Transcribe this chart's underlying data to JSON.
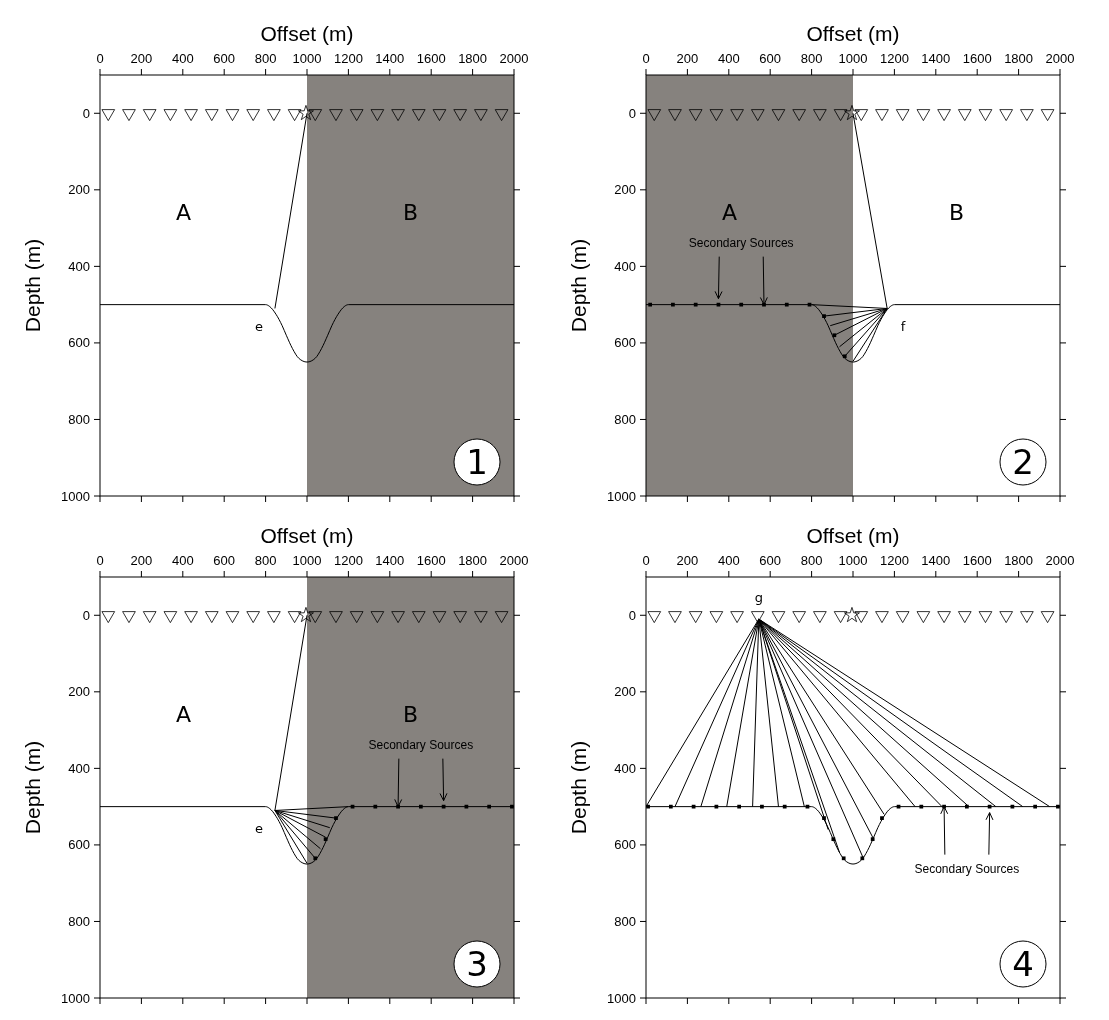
{
  "chart_data": [
    {
      "type": "line",
      "xlabel": "Offset (m)",
      "ylabel": "Depth (m)",
      "xlim": [
        0,
        2000
      ],
      "xticks": [
        0,
        200,
        400,
        600,
        800,
        1000,
        1200,
        1400,
        1600,
        1800,
        2000
      ],
      "ylim": [
        1000,
        -100
      ],
      "yticks": [
        0,
        200,
        400,
        600,
        800,
        1000
      ],
      "bands": [
        {
          "axis": "x",
          "from": 1000,
          "to": 2000,
          "color": "#86827e"
        }
      ],
      "series": [
        {
          "color": "#000000",
          "x": [
            0,
            800,
            820,
            850,
            880,
            900,
            930,
            960,
            1000,
            1040,
            1070,
            1100,
            1120,
            1150,
            1180,
            1200,
            2000
          ],
          "values": [
            500,
            500,
            505,
            525,
            555,
            580,
            615,
            640,
            650,
            640,
            615,
            580,
            555,
            525,
            505,
            500,
            500
          ]
        },
        {
          "color": "#000000",
          "x": [
            1000,
            845
          ],
          "values": [
            0,
            510
          ]
        },
        {
          "type": "scatter",
          "marker": "triangle",
          "color": "#000000",
          "x": [
            40,
            140,
            240,
            340,
            440,
            540,
            640,
            740,
            840,
            940,
            1040,
            1140,
            1240,
            1340,
            1440,
            1540,
            1640,
            1740,
            1840,
            1940
          ],
          "values": [
            0,
            0,
            0,
            0,
            0,
            0,
            0,
            0,
            0,
            0,
            0,
            0,
            0,
            0,
            0,
            0,
            0,
            0,
            0,
            0
          ]
        },
        {
          "type": "scatter",
          "marker": "star",
          "color": "#000000",
          "x": [
            995
          ],
          "values": [
            0
          ]
        }
      ],
      "annotations": [
        "A",
        "B",
        "e",
        "1"
      ]
    },
    {
      "type": "line",
      "xlabel": "Offset (m)",
      "ylabel": "Depth (m)",
      "xlim": [
        0,
        2000
      ],
      "xticks": [
        0,
        200,
        400,
        600,
        800,
        1000,
        1200,
        1400,
        1600,
        1800,
        2000
      ],
      "ylim": [
        1000,
        -100
      ],
      "yticks": [
        0,
        200,
        400,
        600,
        800,
        1000
      ],
      "bands": [
        {
          "axis": "x",
          "from": 0,
          "to": 1000,
          "color": "#86827e"
        }
      ],
      "series": [
        {
          "color": "#000000",
          "x": [
            0,
            800,
            820,
            850,
            880,
            900,
            930,
            960,
            1000,
            1040,
            1070,
            1100,
            1120,
            1150,
            1180,
            1200,
            2000
          ],
          "values": [
            500,
            500,
            505,
            525,
            555,
            580,
            615,
            640,
            650,
            640,
            615,
            580,
            555,
            525,
            505,
            500,
            500
          ]
        },
        {
          "color": "#000000",
          "x": [
            1000,
            1165
          ],
          "values": [
            0,
            510
          ]
        },
        {
          "color": "#000000",
          "x": [
            800,
            1165
          ],
          "values": [
            500,
            510
          ]
        },
        {
          "color": "#000000",
          "x": [
            860,
            1165
          ],
          "values": [
            530,
            510
          ]
        },
        {
          "color": "#000000",
          "x": [
            890,
            1165
          ],
          "values": [
            555,
            510
          ]
        },
        {
          "color": "#000000",
          "x": [
            910,
            1165
          ],
          "values": [
            580,
            510
          ]
        },
        {
          "color": "#000000",
          "x": [
            935,
            1165
          ],
          "values": [
            610,
            510
          ]
        },
        {
          "color": "#000000",
          "x": [
            960,
            1165
          ],
          "values": [
            635,
            510
          ]
        },
        {
          "color": "#000000",
          "x": [
            1000,
            1165
          ],
          "values": [
            648,
            510
          ]
        },
        {
          "type": "scatter",
          "marker": "triangle",
          "color": "#000000",
          "x": [
            40,
            140,
            240,
            340,
            440,
            540,
            640,
            740,
            840,
            940,
            1040,
            1140,
            1240,
            1340,
            1440,
            1540,
            1640,
            1740,
            1840,
            1940
          ],
          "values": [
            0,
            0,
            0,
            0,
            0,
            0,
            0,
            0,
            0,
            0,
            0,
            0,
            0,
            0,
            0,
            0,
            0,
            0,
            0,
            0
          ]
        },
        {
          "type": "scatter",
          "marker": "star",
          "color": "#000000",
          "x": [
            995
          ],
          "values": [
            0
          ]
        },
        {
          "type": "scatter",
          "marker": "square",
          "color": "#000000",
          "name": "Secondary Sources",
          "x": [
            860,
            910,
            960,
            790,
            680,
            570,
            460,
            350,
            240,
            130,
            20
          ],
          "values": [
            530,
            580,
            635,
            500,
            500,
            500,
            500,
            500,
            500,
            500,
            500
          ]
        }
      ],
      "annotations": [
        "A",
        "B",
        "f",
        "2"
      ]
    },
    {
      "type": "line",
      "xlabel": "Offset (m)",
      "ylabel": "Depth (m)",
      "xlim": [
        0,
        2000
      ],
      "xticks": [
        0,
        200,
        400,
        600,
        800,
        1000,
        1200,
        1400,
        1600,
        1800,
        2000
      ],
      "ylim": [
        1000,
        -100
      ],
      "yticks": [
        0,
        200,
        400,
        600,
        800,
        1000
      ],
      "bands": [
        {
          "axis": "x",
          "from": 1000,
          "to": 2000,
          "color": "#86827e"
        }
      ],
      "series": [
        {
          "color": "#000000",
          "x": [
            0,
            800,
            820,
            850,
            880,
            900,
            930,
            960,
            1000,
            1040,
            1070,
            1100,
            1120,
            1150,
            1180,
            1200,
            2000
          ],
          "values": [
            500,
            500,
            505,
            525,
            555,
            580,
            615,
            640,
            650,
            640,
            615,
            580,
            555,
            525,
            505,
            500,
            500
          ]
        },
        {
          "color": "#000000",
          "x": [
            1000,
            845
          ],
          "values": [
            0,
            510
          ]
        },
        {
          "color": "#000000",
          "x": [
            1200,
            845
          ],
          "values": [
            500,
            510
          ]
        },
        {
          "color": "#000000",
          "x": [
            1140,
            845
          ],
          "values": [
            530,
            510
          ]
        },
        {
          "color": "#000000",
          "x": [
            1110,
            845
          ],
          "values": [
            555,
            510
          ]
        },
        {
          "color": "#000000",
          "x": [
            1090,
            845
          ],
          "values": [
            580,
            510
          ]
        },
        {
          "color": "#000000",
          "x": [
            1065,
            845
          ],
          "values": [
            610,
            510
          ]
        },
        {
          "color": "#000000",
          "x": [
            1040,
            845
          ],
          "values": [
            635,
            510
          ]
        },
        {
          "color": "#000000",
          "x": [
            1000,
            845
          ],
          "values": [
            648,
            510
          ]
        },
        {
          "type": "scatter",
          "marker": "triangle",
          "color": "#000000",
          "x": [
            40,
            140,
            240,
            340,
            440,
            540,
            640,
            740,
            840,
            940,
            1040,
            1140,
            1240,
            1340,
            1440,
            1540,
            1640,
            1740,
            1840,
            1940
          ],
          "values": [
            0,
            0,
            0,
            0,
            0,
            0,
            0,
            0,
            0,
            0,
            0,
            0,
            0,
            0,
            0,
            0,
            0,
            0,
            0,
            0
          ]
        },
        {
          "type": "scatter",
          "marker": "star",
          "color": "#000000",
          "x": [
            995
          ],
          "values": [
            0
          ]
        },
        {
          "type": "scatter",
          "marker": "square",
          "color": "#000000",
          "name": "Secondary Sources",
          "x": [
            1040,
            1090,
            1140,
            1220,
            1330,
            1440,
            1550,
            1660,
            1770,
            1880,
            1990
          ],
          "values": [
            635,
            585,
            530,
            500,
            500,
            500,
            500,
            500,
            500,
            500,
            500
          ]
        }
      ],
      "annotations": [
        "A",
        "B",
        "e",
        "3"
      ]
    },
    {
      "type": "line",
      "xlabel": "Offset (m)",
      "ylabel": "Depth (m)",
      "xlim": [
        0,
        2000
      ],
      "xticks": [
        0,
        200,
        400,
        600,
        800,
        1000,
        1200,
        1400,
        1600,
        1800,
        2000
      ],
      "ylim": [
        1000,
        -100
      ],
      "yticks": [
        0,
        200,
        400,
        600,
        800,
        1000
      ],
      "series": [
        {
          "color": "#000000",
          "x": [
            0,
            800,
            820,
            850,
            880,
            900,
            930,
            960,
            1000,
            1040,
            1070,
            1100,
            1120,
            1150,
            1180,
            1200,
            2000
          ],
          "values": [
            500,
            500,
            505,
            525,
            555,
            580,
            615,
            640,
            650,
            640,
            615,
            580,
            555,
            525,
            505,
            500,
            500
          ]
        },
        {
          "color": "#000000",
          "x": [
            545,
            0
          ],
          "values": [
            10,
            500
          ]
        },
        {
          "color": "#000000",
          "x": [
            545,
            140
          ],
          "values": [
            10,
            500
          ]
        },
        {
          "color": "#000000",
          "x": [
            545,
            265
          ],
          "values": [
            10,
            500
          ]
        },
        {
          "color": "#000000",
          "x": [
            545,
            390
          ],
          "values": [
            10,
            500
          ]
        },
        {
          "color": "#000000",
          "x": [
            545,
            515
          ],
          "values": [
            10,
            500
          ]
        },
        {
          "color": "#000000",
          "x": [
            545,
            640
          ],
          "values": [
            10,
            500
          ]
        },
        {
          "color": "#000000",
          "x": [
            545,
            765
          ],
          "values": [
            10,
            500
          ]
        },
        {
          "color": "#000000",
          "x": [
            545,
            880
          ],
          "values": [
            10,
            560
          ]
        },
        {
          "color": "#000000",
          "x": [
            545,
            935
          ],
          "values": [
            10,
            620
          ]
        },
        {
          "color": "#000000",
          "x": [
            545,
            1050
          ],
          "values": [
            10,
            635
          ]
        },
        {
          "color": "#000000",
          "x": [
            545,
            1100
          ],
          "values": [
            10,
            585
          ]
        },
        {
          "color": "#000000",
          "x": [
            545,
            1150
          ],
          "values": [
            10,
            520
          ]
        },
        {
          "color": "#000000",
          "x": [
            545,
            1300
          ],
          "values": [
            10,
            500
          ]
        },
        {
          "color": "#000000",
          "x": [
            545,
            1430
          ],
          "values": [
            10,
            500
          ]
        },
        {
          "color": "#000000",
          "x": [
            545,
            1560
          ],
          "values": [
            10,
            500
          ]
        },
        {
          "color": "#000000",
          "x": [
            545,
            1690
          ],
          "values": [
            10,
            500
          ]
        },
        {
          "color": "#000000",
          "x": [
            545,
            1820
          ],
          "values": [
            10,
            500
          ]
        },
        {
          "color": "#000000",
          "x": [
            545,
            1950
          ],
          "values": [
            10,
            500
          ]
        },
        {
          "type": "scatter",
          "marker": "triangle",
          "color": "#000000",
          "x": [
            40,
            140,
            240,
            340,
            440,
            540,
            640,
            740,
            840,
            940,
            1040,
            1140,
            1240,
            1340,
            1440,
            1540,
            1640,
            1740,
            1840,
            1940
          ],
          "values": [
            0,
            0,
            0,
            0,
            0,
            0,
            0,
            0,
            0,
            0,
            0,
            0,
            0,
            0,
            0,
            0,
            0,
            0,
            0,
            0
          ]
        },
        {
          "type": "scatter",
          "marker": "star",
          "color": "#000000",
          "x": [
            995
          ],
          "values": [
            0
          ]
        },
        {
          "type": "scatter",
          "marker": "square",
          "color": "#000000",
          "name": "Secondary Sources",
          "x": [
            10,
            120,
            230,
            340,
            450,
            560,
            670,
            780,
            860,
            905,
            955,
            1045,
            1095,
            1140,
            1220,
            1330,
            1440,
            1550,
            1660,
            1770,
            1880,
            1990
          ],
          "values": [
            500,
            500,
            500,
            500,
            500,
            500,
            500,
            500,
            530,
            585,
            635,
            635,
            585,
            530,
            500,
            500,
            500,
            500,
            500,
            500,
            500,
            500
          ]
        }
      ],
      "annotations": [
        "g",
        "4"
      ]
    }
  ]
}
